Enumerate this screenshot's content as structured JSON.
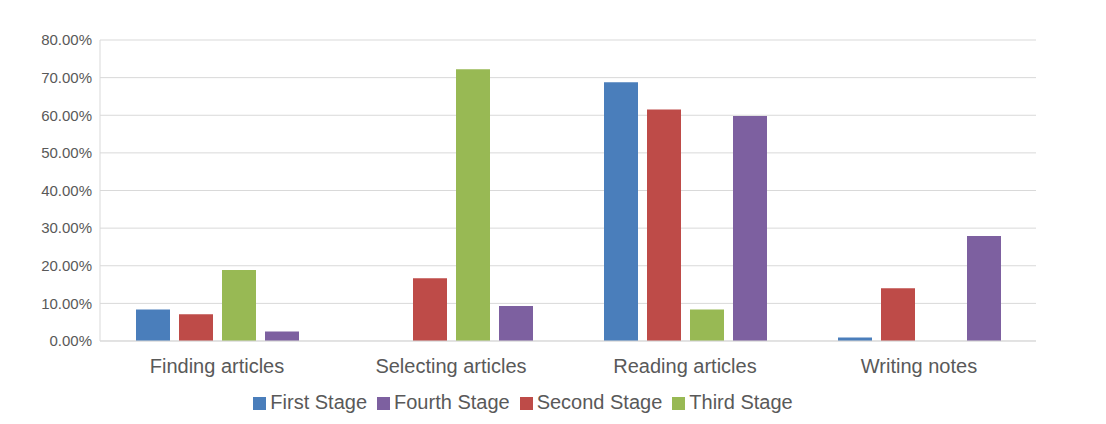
{
  "chart_data": {
    "type": "bar",
    "categories": [
      "Finding articles",
      "Selecting articles",
      "Reading articles",
      "Writing notes"
    ],
    "series": [
      {
        "name": "First Stage",
        "color": "#4a7ebb",
        "values": [
          8.4,
          0,
          68.8,
          0.9
        ]
      },
      {
        "name": "Second Stage",
        "color": "#be4b48",
        "values": [
          7.1,
          16.7,
          61.5,
          14
        ]
      },
      {
        "name": "Third Stage",
        "color": "#98b954",
        "values": [
          18.9,
          72.2,
          8.4,
          0
        ]
      },
      {
        "name": "Fourth Stage",
        "color": "#7d60a0",
        "values": [
          2.5,
          9.3,
          59.8,
          27.9
        ]
      }
    ],
    "ylim": [
      0,
      80
    ],
    "yticks": [
      {
        "value": 0,
        "label": "0.00%"
      },
      {
        "value": 10,
        "label": "10.00%"
      },
      {
        "value": 20,
        "label": "20.00%"
      },
      {
        "value": 30,
        "label": "30.00%"
      },
      {
        "value": 40,
        "label": "40.00%"
      },
      {
        "value": 50,
        "label": "50.00%"
      },
      {
        "value": 60,
        "label": "60.00%"
      },
      {
        "value": 70,
        "label": "70.00%"
      },
      {
        "value": 80,
        "label": "80.00%"
      }
    ],
    "grid": true,
    "legend": "bottom"
  }
}
